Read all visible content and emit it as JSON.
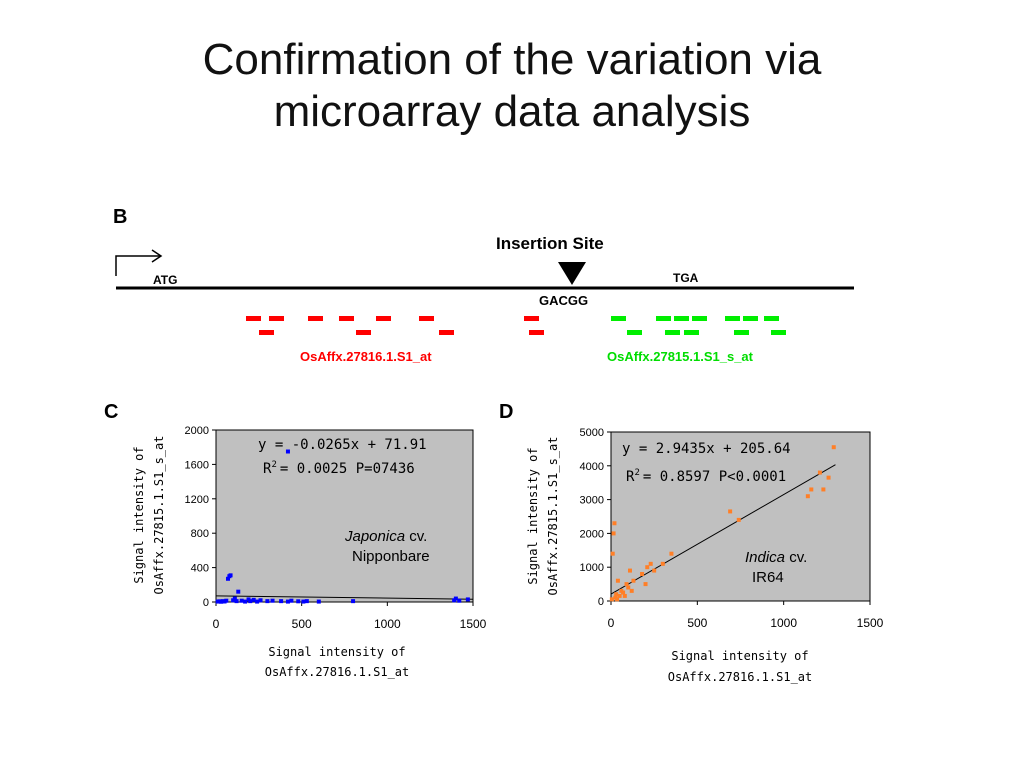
{
  "title": {
    "line1": "Confirmation of the variation via",
    "line2": "microarray data analysis"
  },
  "panel_b": {
    "label": "B",
    "insertion_label": "Insertion Site",
    "start_codon": "ATG",
    "stop_codon": "TGA",
    "site_sequence": "GACGG",
    "probe_left_label": "OsAffx.27816.1.S1_at",
    "probe_right_label": "OsAffx.27815.1.S1_s_at",
    "probe_left_color": "#ff0000",
    "probe_right_color": "#00ee00"
  },
  "chart_data": [
    {
      "type": "scatter",
      "panel_label": "C",
      "xlabel": "Signal intensity of OsAffx.27816.1.S1_at",
      "xlabel_line1": "Signal intensity of",
      "xlabel_line2": "OsAffx.27816.1.S1_at",
      "ylabel": "Signal intensity of OsAffx.27815.1.S1_s_at",
      "ylabel_line1": "Signal intensity of",
      "ylabel_line2": "OsAffx.27815.1.S1_s_at",
      "xlim": [
        0,
        1500
      ],
      "ylim": [
        0,
        2000
      ],
      "xticks": [
        "0",
        "500",
        "1000",
        "1500"
      ],
      "yticks": [
        "0",
        "400",
        "800",
        "1200",
        "1600",
        "2000"
      ],
      "equation": "y = -0.0265x + 71.91",
      "r2_text": "= 0.0025 P=07436",
      "variety_italic": "Japonica",
      "variety_suffix": " cv.",
      "variety_name": "Nipponbare",
      "point_color": "#0000ff",
      "plot_bg": "#c0c0c0",
      "trendline": {
        "slope": -0.0265,
        "intercept": 71.91,
        "x_range": [
          0,
          1500
        ]
      },
      "points": [
        {
          "x": 10,
          "y": 5
        },
        {
          "x": 20,
          "y": 8
        },
        {
          "x": 30,
          "y": 3
        },
        {
          "x": 40,
          "y": 10
        },
        {
          "x": 50,
          "y": 6
        },
        {
          "x": 60,
          "y": 15
        },
        {
          "x": 70,
          "y": 270
        },
        {
          "x": 78,
          "y": 300
        },
        {
          "x": 85,
          "y": 310
        },
        {
          "x": 100,
          "y": 20
        },
        {
          "x": 110,
          "y": 40
        },
        {
          "x": 120,
          "y": 10
        },
        {
          "x": 130,
          "y": 120
        },
        {
          "x": 150,
          "y": 15
        },
        {
          "x": 170,
          "y": 5
        },
        {
          "x": 190,
          "y": 30
        },
        {
          "x": 200,
          "y": 10
        },
        {
          "x": 220,
          "y": 25
        },
        {
          "x": 240,
          "y": 5
        },
        {
          "x": 260,
          "y": 20
        },
        {
          "x": 300,
          "y": 10
        },
        {
          "x": 330,
          "y": 15
        },
        {
          "x": 380,
          "y": 10
        },
        {
          "x": 420,
          "y": 5
        },
        {
          "x": 440,
          "y": 15
        },
        {
          "x": 480,
          "y": 8
        },
        {
          "x": 510,
          "y": 5
        },
        {
          "x": 530,
          "y": 10
        },
        {
          "x": 600,
          "y": 5
        },
        {
          "x": 800,
          "y": 10
        },
        {
          "x": 1390,
          "y": 20
        },
        {
          "x": 1400,
          "y": 40
        },
        {
          "x": 1420,
          "y": 15
        },
        {
          "x": 1470,
          "y": 30
        },
        {
          "x": 420,
          "y": 1750
        }
      ]
    },
    {
      "type": "scatter",
      "panel_label": "D",
      "xlabel": "Signal intensity of OsAffx.27816.1.S1_at",
      "xlabel_line1": "Signal intensity of",
      "xlabel_line2": "OsAffx.27816.1.S1_at",
      "ylabel": "Signal intensity of OsAffx.27815.1.S1_s_at",
      "ylabel_line1": "Signal intensity of",
      "ylabel_line2": "OsAffx.27815.1.S1_s_at",
      "xlim": [
        0,
        1500
      ],
      "ylim": [
        0,
        5000
      ],
      "xticks": [
        "0",
        "500",
        "1000",
        "1500"
      ],
      "yticks": [
        "0",
        "1000",
        "2000",
        "3000",
        "4000",
        "5000"
      ],
      "equation": "y = 2.9435x + 205.64",
      "r2_text": "= 0.8597 P<0.0001",
      "variety_italic": "Indica",
      "variety_suffix": " cv.",
      "variety_name": "IR64",
      "point_color": "#ff7f27",
      "plot_bg": "#c0c0c0",
      "trendline": {
        "slope": 2.9435,
        "intercept": 205.64,
        "x_range": [
          0,
          1300
        ]
      },
      "points": [
        {
          "x": 5,
          "y": 50
        },
        {
          "x": 10,
          "y": 1400
        },
        {
          "x": 15,
          "y": 2000
        },
        {
          "x": 20,
          "y": 2300
        },
        {
          "x": 25,
          "y": 100
        },
        {
          "x": 30,
          "y": 200
        },
        {
          "x": 35,
          "y": 50
        },
        {
          "x": 40,
          "y": 600
        },
        {
          "x": 50,
          "y": 150
        },
        {
          "x": 60,
          "y": 300
        },
        {
          "x": 70,
          "y": 250
        },
        {
          "x": 80,
          "y": 150
        },
        {
          "x": 90,
          "y": 500
        },
        {
          "x": 100,
          "y": 400
        },
        {
          "x": 110,
          "y": 900
        },
        {
          "x": 120,
          "y": 300
        },
        {
          "x": 130,
          "y": 600
        },
        {
          "x": 180,
          "y": 800
        },
        {
          "x": 200,
          "y": 500
        },
        {
          "x": 210,
          "y": 1000
        },
        {
          "x": 230,
          "y": 1100
        },
        {
          "x": 250,
          "y": 900
        },
        {
          "x": 300,
          "y": 1100
        },
        {
          "x": 350,
          "y": 1400
        },
        {
          "x": 690,
          "y": 2650
        },
        {
          "x": 740,
          "y": 2400
        },
        {
          "x": 1140,
          "y": 3100
        },
        {
          "x": 1160,
          "y": 3300
        },
        {
          "x": 1210,
          "y": 3800
        },
        {
          "x": 1230,
          "y": 3300
        },
        {
          "x": 1260,
          "y": 3650
        },
        {
          "x": 1290,
          "y": 4550
        }
      ]
    }
  ]
}
